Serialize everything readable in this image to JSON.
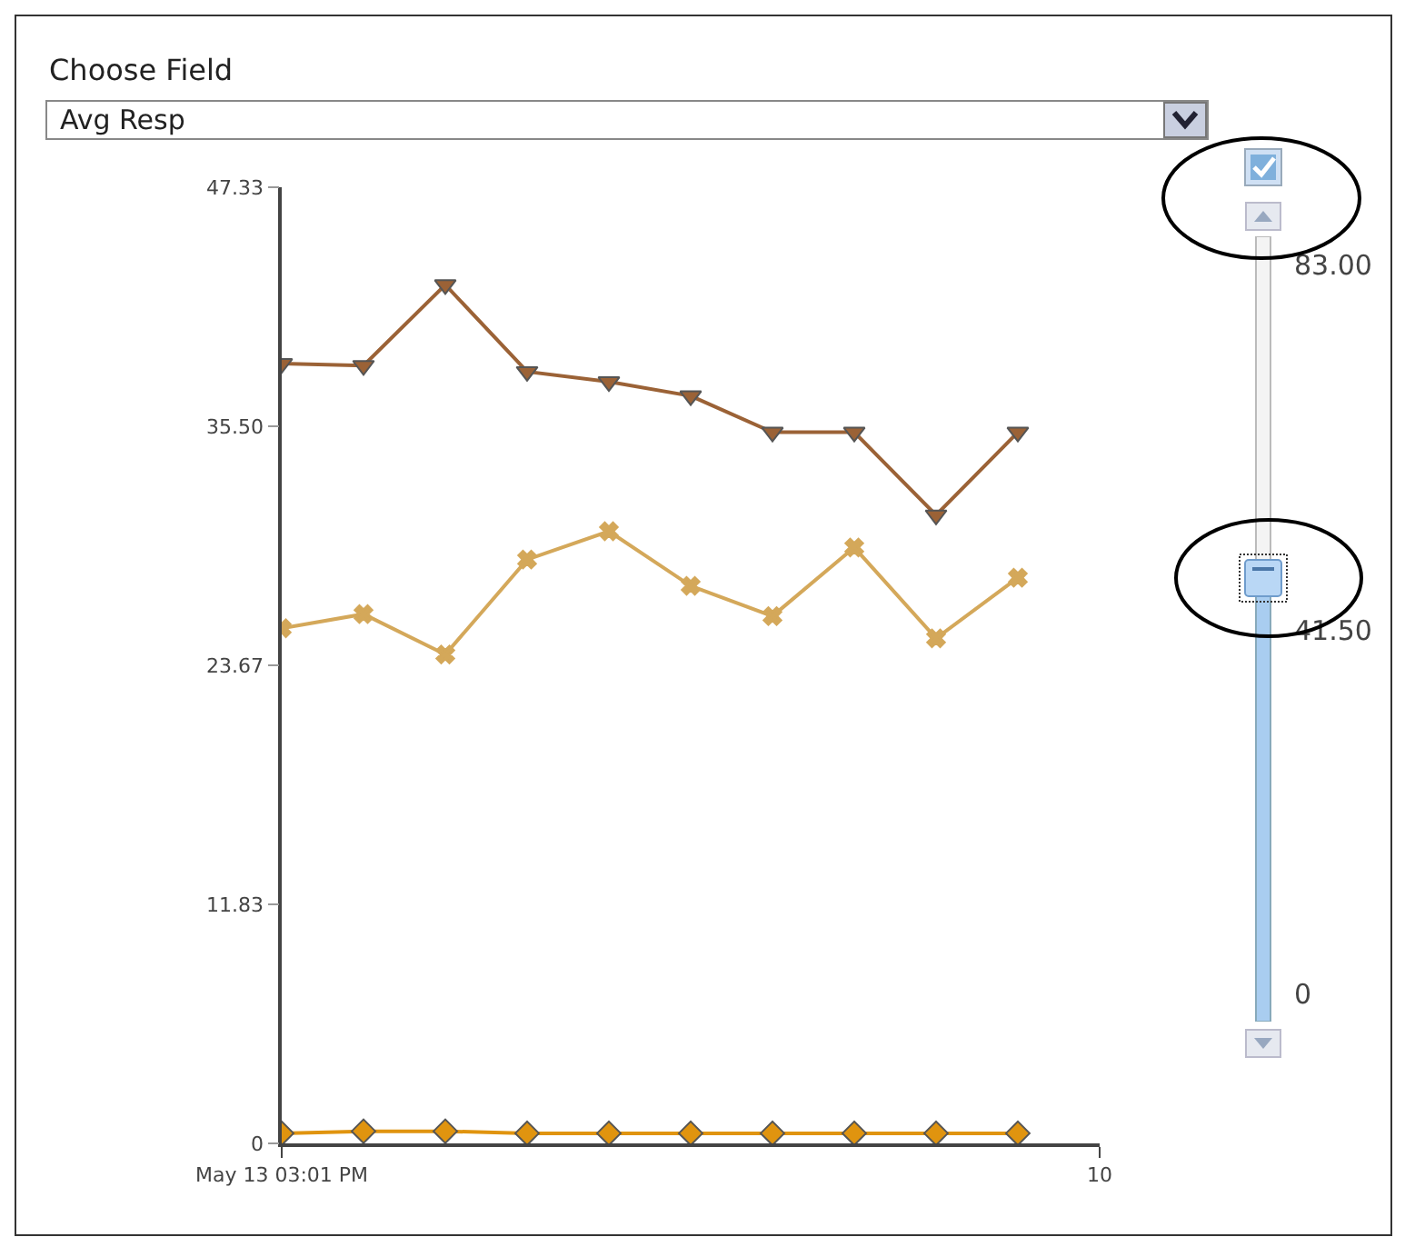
{
  "chart_data": {
    "type": "line",
    "categories": [
      "May 13 03:01 PM",
      null,
      null,
      null,
      null,
      null,
      null,
      null,
      null,
      null,
      "10"
    ],
    "series": [
      {
        "color": "#9b6236",
        "marker": "triangle",
        "values": [
          38.6,
          38.5,
          42.5,
          38.2,
          37.7,
          37.0,
          35.2,
          35.2,
          31.1,
          35.2,
          null
        ]
      },
      {
        "color": "#d4a85a",
        "marker": "cross",
        "values": [
          25.5,
          26.2,
          24.2,
          28.9,
          30.3,
          27.6,
          26.1,
          29.5,
          25.0,
          28.0,
          null
        ]
      },
      {
        "color": "#e0940f",
        "marker": "diamond",
        "values": [
          0.5,
          0.6,
          0.6,
          0.5,
          0.5,
          0.5,
          0.5,
          0.5,
          0.5,
          0.5,
          null
        ]
      }
    ],
    "ylim": [
      0,
      47.33
    ],
    "yticks": [
      0,
      11.83,
      23.67,
      {
        "value": 35.5,
        "label": "35.50"
      },
      47.33
    ],
    "grid": false,
    "annotations": [
      "Choose Field",
      "Avg Resp",
      "83.00",
      "41.50",
      "0"
    ]
  }
}
